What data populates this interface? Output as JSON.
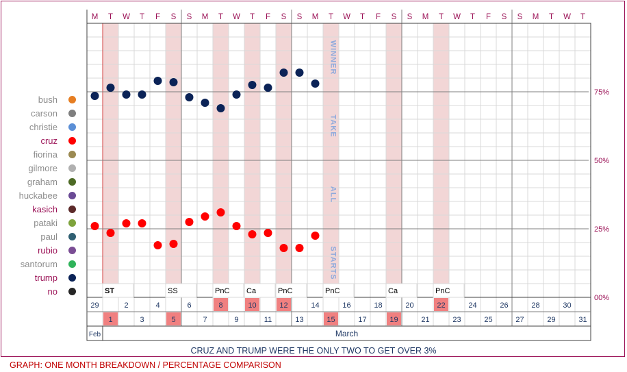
{
  "chart_data": {
    "type": "scatter",
    "title": "",
    "subtitle": "CRUZ AND TRUMP WERE THE ONLY TWO TO GET OVER 3%",
    "day_letters": [
      "M",
      "T",
      "W",
      "T",
      "F",
      "S",
      "S",
      "M",
      "T",
      "W",
      "T",
      "F",
      "S",
      "S",
      "M",
      "T",
      "W",
      "T",
      "F",
      "S",
      "S",
      "M",
      "T",
      "W",
      "T",
      "F",
      "S",
      "S",
      "M",
      "T",
      "W",
      "T"
    ],
    "top_dates": [
      "29",
      "",
      "2",
      "",
      "4",
      "",
      "6",
      "",
      "8",
      "",
      "10",
      "",
      "12",
      "",
      "14",
      "",
      "16",
      "",
      "18",
      "",
      "20",
      "",
      "22",
      "",
      "24",
      "",
      "26",
      "",
      "28",
      "",
      "30",
      ""
    ],
    "bottom_dates": [
      "",
      "1",
      "",
      "3",
      "",
      "5",
      "",
      "7",
      "",
      "9",
      "",
      "11",
      "",
      "13",
      "",
      "15",
      "",
      "17",
      "",
      "19",
      "",
      "21",
      "",
      "23",
      "",
      "25",
      "",
      "27",
      "",
      "29",
      "",
      "31"
    ],
    "highlight_columns": [
      1,
      5,
      8,
      10,
      12,
      15,
      19,
      22
    ],
    "event_labels": [
      {
        "col": 1,
        "text": "ST"
      },
      {
        "col": 5,
        "text": "SS"
      },
      {
        "col": 8,
        "text": "PnC"
      },
      {
        "col": 10,
        "text": "Ca"
      },
      {
        "col": 12,
        "text": "PnC"
      },
      {
        "col": 15,
        "text": "PnC"
      },
      {
        "col": 19,
        "text": "Ca"
      },
      {
        "col": 22,
        "text": "PnC"
      }
    ],
    "vertical_words": [
      "WINNER",
      "TAKE",
      "ALL",
      "STARTS"
    ],
    "month_labels": {
      "feb": "Feb",
      "march": "March"
    },
    "y_ticks": [
      {
        "value": 75,
        "label": "75%"
      },
      {
        "value": 50,
        "label": "50%"
      },
      {
        "value": 25,
        "label": "25%"
      },
      {
        "value": 0,
        "label": "00%"
      }
    ],
    "ylim": [
      0,
      100
    ],
    "legend": [
      {
        "name": "bush",
        "color": "#e67e22",
        "text_color": "#8c8c8c"
      },
      {
        "name": "carson",
        "color": "#7f7f7f",
        "text_color": "#8c8c8c"
      },
      {
        "name": "christie",
        "color": "#5b8fd6",
        "text_color": "#8c8c8c"
      },
      {
        "name": "cruz",
        "color": "#ff0000",
        "text_color": "#9c1458"
      },
      {
        "name": "fiorina",
        "color": "#9b8a52",
        "text_color": "#8c8c8c"
      },
      {
        "name": "gilmore",
        "color": "#b0b0b0",
        "text_color": "#8c8c8c"
      },
      {
        "name": "graham",
        "color": "#4d6a25",
        "text_color": "#8c8c8c"
      },
      {
        "name": "huckabee",
        "color": "#6a4a95",
        "text_color": "#8c8c8c"
      },
      {
        "name": "kasich",
        "color": "#5c2a2a",
        "text_color": "#9c1458"
      },
      {
        "name": "pataki",
        "color": "#7ea33c",
        "text_color": "#8c8c8c"
      },
      {
        "name": "paul",
        "color": "#2f5f72",
        "text_color": "#8c8c8c"
      },
      {
        "name": "rubio",
        "color": "#7a4d94",
        "text_color": "#9c1458"
      },
      {
        "name": "santorum",
        "color": "#2fb35a",
        "text_color": "#8c8c8c"
      },
      {
        "name": "trump",
        "color": "#0b2357",
        "text_color": "#9c1458"
      },
      {
        "name": "no",
        "color": "#262626",
        "text_color": "#9c1458"
      }
    ],
    "series": [
      {
        "name": "trump",
        "color": "#0b2357",
        "points": [
          [
            0,
            73.5
          ],
          [
            1,
            76.5
          ],
          [
            2,
            74
          ],
          [
            3,
            74
          ],
          [
            4,
            79
          ],
          [
            5,
            78.5
          ],
          [
            6,
            73
          ],
          [
            7,
            71
          ],
          [
            8,
            69
          ],
          [
            9,
            74
          ],
          [
            10,
            77.5
          ],
          [
            11,
            76.5
          ],
          [
            12,
            82
          ],
          [
            13,
            82
          ],
          [
            14,
            78
          ]
        ]
      },
      {
        "name": "cruz",
        "color": "#ff0000",
        "points": [
          [
            0,
            26
          ],
          [
            1,
            23.5
          ],
          [
            2,
            27
          ],
          [
            3,
            27
          ],
          [
            4,
            19
          ],
          [
            5,
            19.5
          ],
          [
            6,
            27.5
          ],
          [
            7,
            29.5
          ],
          [
            8,
            31
          ],
          [
            9,
            26
          ],
          [
            10,
            23
          ],
          [
            11,
            23.5
          ],
          [
            12,
            18
          ],
          [
            13,
            18
          ],
          [
            14,
            22.5
          ]
        ]
      }
    ]
  },
  "footer": {
    "caption": "GRAPH: ONE MONTH BREAKDOWN / PERCENTAGE COMPARISON"
  }
}
